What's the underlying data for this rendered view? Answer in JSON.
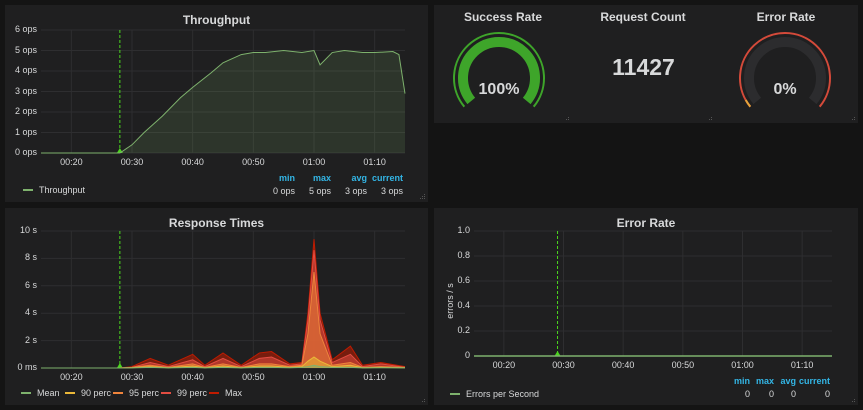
{
  "throughput": {
    "title": "Throughput",
    "y_ticks": [
      "6 ops",
      "5 ops",
      "4 ops",
      "3 ops",
      "2 ops",
      "1 ops",
      "0 ops"
    ],
    "x_ticks": [
      "00:20",
      "00:30",
      "00:40",
      "00:50",
      "01:00",
      "01:10"
    ],
    "legend": "Throughput",
    "legend_color": "#7eb26d",
    "stats_headers": [
      "min",
      "max",
      "avg",
      "current"
    ],
    "stats_values": [
      "0 ops",
      "5 ops",
      "3 ops",
      "3 ops"
    ]
  },
  "success_rate": {
    "title": "Success Rate",
    "value": "100%",
    "fraction": 1.0,
    "color": "#3ea52a"
  },
  "request_count": {
    "title": "Request Count",
    "value": "11427"
  },
  "error_rate_gauge": {
    "title": "Error Rate",
    "value": "0%",
    "fraction": 0.0,
    "color": "#d44a3a"
  },
  "response_times": {
    "title": "Response Times",
    "y_ticks": [
      "10 s",
      "8 s",
      "6 s",
      "4 s",
      "2 s",
      "0 ms"
    ],
    "x_ticks": [
      "00:20",
      "00:30",
      "00:40",
      "00:50",
      "01:00",
      "01:10"
    ],
    "legend": [
      {
        "label": "Mean",
        "color": "#7eb26d"
      },
      {
        "label": "90 perc",
        "color": "#eab839"
      },
      {
        "label": "95 perc",
        "color": "#ef843c"
      },
      {
        "label": "99 perc",
        "color": "#e24d42"
      },
      {
        "label": "Max",
        "color": "#bf1b00"
      }
    ]
  },
  "error_rate": {
    "title": "Error Rate",
    "y_axis_label": "errors / s",
    "y_ticks": [
      "1.0",
      "0.8",
      "0.6",
      "0.4",
      "0.2",
      "0"
    ],
    "x_ticks": [
      "00:20",
      "00:30",
      "00:40",
      "00:50",
      "01:00",
      "01:10"
    ],
    "legend": "Errors per Second",
    "legend_color": "#7eb26d",
    "stats_headers": [
      "min",
      "max",
      "avg",
      "current"
    ],
    "stats_values": [
      "0",
      "0",
      "0",
      "0"
    ]
  },
  "chart_data": [
    {
      "type": "area",
      "title": "Throughput",
      "ylim": [
        0,
        6
      ],
      "x_unit": "minutes",
      "x": [
        "00:15",
        "00:20",
        "00:25",
        "00:28",
        "00:30",
        "00:32",
        "00:35",
        "00:38",
        "00:40",
        "00:43",
        "00:45",
        "00:48",
        "00:50",
        "00:52",
        "00:55",
        "00:58",
        "01:00",
        "01:01",
        "01:03",
        "01:05",
        "01:08",
        "01:10",
        "01:13",
        "01:14",
        "01:15"
      ],
      "series": [
        {
          "name": "Throughput",
          "values": [
            0,
            0,
            0,
            0,
            0.4,
            1.0,
            1.8,
            2.7,
            3.2,
            3.9,
            4.4,
            4.8,
            4.9,
            4.9,
            5.0,
            4.9,
            5.0,
            4.3,
            4.9,
            5.0,
            4.9,
            4.9,
            4.95,
            4.8,
            2.9
          ]
        }
      ]
    },
    {
      "type": "area",
      "title": "Response Times",
      "y_unit": "s",
      "ylim": [
        0,
        10
      ],
      "x": [
        "00:15",
        "00:28",
        "00:30",
        "00:33",
        "00:36",
        "00:40",
        "00:42",
        "00:45",
        "00:48",
        "00:51",
        "00:53",
        "00:56",
        "00:58",
        "00:59",
        "01:00",
        "01:01",
        "01:03",
        "01:06",
        "01:08",
        "01:11",
        "01:15"
      ],
      "series": [
        {
          "name": "Max",
          "values": [
            0,
            0,
            0.1,
            0.7,
            0.2,
            1.0,
            0.2,
            1.1,
            0.2,
            1.1,
            1.2,
            0.3,
            0.4,
            4.0,
            9.4,
            4.0,
            0.6,
            1.6,
            0.2,
            0.4,
            0.1
          ]
        },
        {
          "name": "99 perc",
          "values": [
            0,
            0,
            0.05,
            0.4,
            0.1,
            0.6,
            0.1,
            0.7,
            0.1,
            0.7,
            0.8,
            0.2,
            0.3,
            3.5,
            8.6,
            3.5,
            0.4,
            1.0,
            0.1,
            0.3,
            0.05
          ]
        },
        {
          "name": "95 perc",
          "values": [
            0,
            0,
            0.05,
            0.2,
            0.05,
            0.3,
            0.05,
            0.3,
            0.05,
            0.3,
            0.3,
            0.1,
            0.2,
            2.5,
            7.0,
            2.5,
            0.2,
            0.4,
            0.05,
            0.1,
            0.05
          ]
        },
        {
          "name": "90 perc",
          "values": [
            0,
            0,
            0.02,
            0.1,
            0.02,
            0.15,
            0.02,
            0.15,
            0.02,
            0.15,
            0.15,
            0.05,
            0.1,
            0.5,
            0.8,
            0.5,
            0.1,
            0.2,
            0.02,
            0.05,
            0.02
          ]
        },
        {
          "name": "Mean",
          "values": [
            0,
            0,
            0.01,
            0.05,
            0.01,
            0.05,
            0.01,
            0.05,
            0.01,
            0.05,
            0.05,
            0.02,
            0.05,
            0.1,
            0.2,
            0.1,
            0.05,
            0.05,
            0.01,
            0.02,
            0.01
          ]
        }
      ]
    },
    {
      "type": "line",
      "title": "Error Rate",
      "ylabel": "errors / s",
      "ylim": [
        0,
        1
      ],
      "x": [
        "00:15",
        "00:29",
        "01:15"
      ],
      "series": [
        {
          "name": "Errors per Second",
          "values": [
            0,
            0,
            0
          ]
        }
      ]
    }
  ]
}
